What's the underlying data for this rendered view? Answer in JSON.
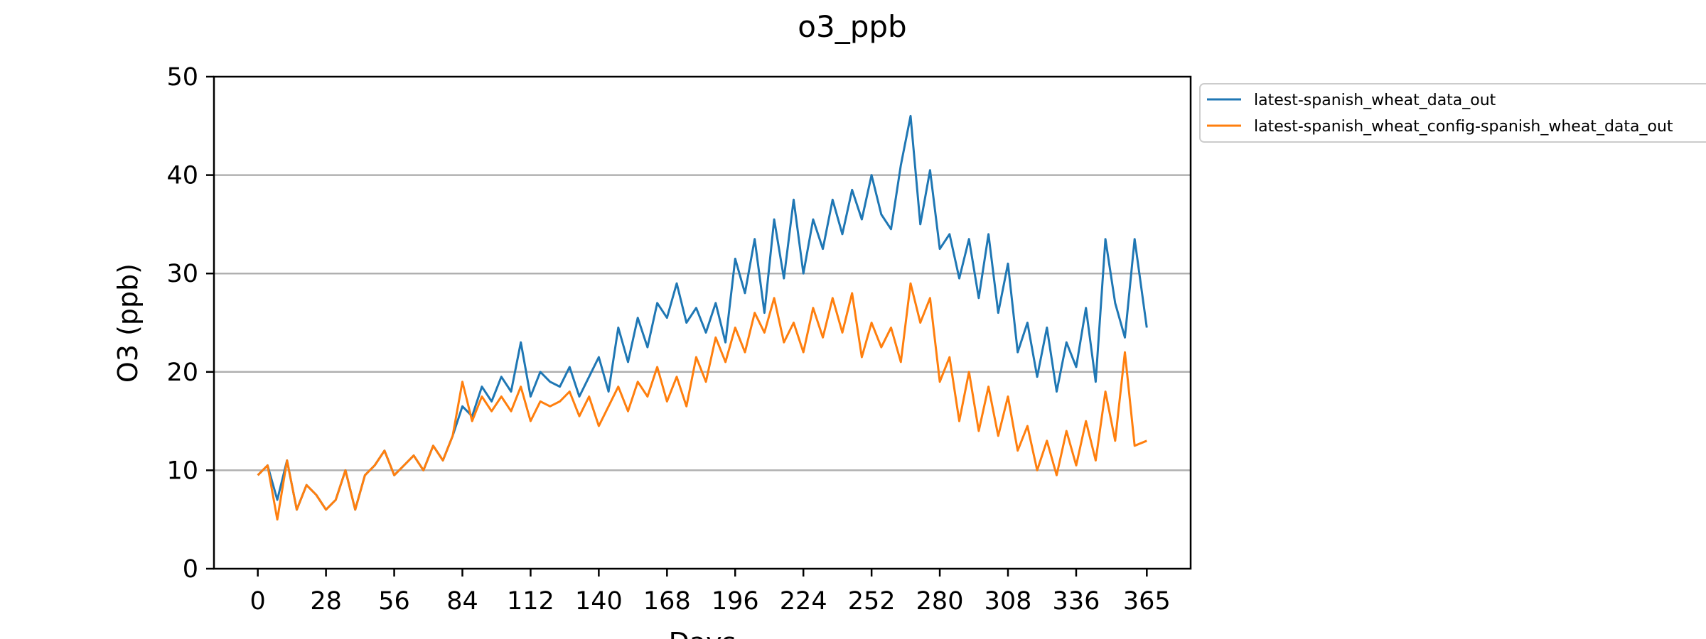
{
  "chart_data": {
    "type": "line",
    "title": "o3_ppb",
    "xlabel": "Days",
    "ylabel": "O3 (ppb)",
    "xlim": [
      -18,
      383
    ],
    "ylim": [
      0,
      50
    ],
    "xticks": [
      0,
      28,
      56,
      84,
      112,
      140,
      168,
      196,
      224,
      252,
      280,
      308,
      336,
      365
    ],
    "yticks": [
      0,
      10,
      20,
      30,
      40,
      50
    ],
    "grid": "horizontal",
    "legend_position": "outside-top-right",
    "series": [
      {
        "name": "latest-spanish_wheat_data_out",
        "color": "#1f77b4",
        "x": [
          0,
          4,
          8,
          12,
          16,
          20,
          24,
          28,
          32,
          36,
          40,
          44,
          48,
          52,
          56,
          60,
          64,
          68,
          72,
          76,
          80,
          84,
          88,
          92,
          96,
          100,
          104,
          108,
          112,
          116,
          120,
          124,
          128,
          132,
          136,
          140,
          144,
          148,
          152,
          156,
          160,
          164,
          168,
          172,
          176,
          180,
          184,
          188,
          192,
          196,
          200,
          204,
          208,
          212,
          216,
          220,
          224,
          228,
          232,
          236,
          240,
          244,
          248,
          252,
          256,
          260,
          264,
          268,
          272,
          276,
          280,
          284,
          288,
          292,
          296,
          300,
          304,
          308,
          312,
          316,
          320,
          324,
          328,
          332,
          336,
          340,
          344,
          348,
          352,
          356,
          360,
          365
        ],
        "values": [
          9.5,
          10.5,
          7.0,
          11.0,
          6.0,
          8.5,
          7.5,
          6.0,
          7.0,
          10.0,
          6.0,
          9.5,
          10.5,
          12.0,
          9.5,
          10.5,
          11.5,
          10.0,
          12.5,
          11.0,
          13.5,
          16.5,
          15.5,
          18.5,
          17.0,
          19.5,
          18.0,
          23.0,
          17.5,
          20.0,
          19.0,
          18.5,
          20.5,
          17.5,
          19.5,
          21.5,
          18.0,
          24.5,
          21.0,
          25.5,
          22.5,
          27.0,
          25.5,
          29.0,
          25.0,
          26.5,
          24.0,
          27.0,
          23.0,
          31.5,
          28.0,
          33.5,
          26.0,
          35.5,
          29.5,
          37.5,
          30.0,
          35.5,
          32.5,
          37.5,
          34.0,
          38.5,
          35.5,
          40.0,
          36.0,
          34.5,
          41.0,
          46.0,
          35.0,
          40.5,
          32.5,
          34.0,
          29.5,
          33.5,
          27.5,
          34.0,
          26.0,
          31.0,
          22.0,
          25.0,
          19.5,
          24.5,
          18.0,
          23.0,
          20.5,
          26.5,
          19.0,
          33.5,
          27.0,
          23.5,
          33.5,
          24.5
        ]
      },
      {
        "name": "latest-spanish_wheat_config-spanish_wheat_data_out",
        "color": "#ff7f0e",
        "x": [
          0,
          4,
          8,
          12,
          16,
          20,
          24,
          28,
          32,
          36,
          40,
          44,
          48,
          52,
          56,
          60,
          64,
          68,
          72,
          76,
          80,
          84,
          88,
          92,
          96,
          100,
          104,
          108,
          112,
          116,
          120,
          124,
          128,
          132,
          136,
          140,
          144,
          148,
          152,
          156,
          160,
          164,
          168,
          172,
          176,
          180,
          184,
          188,
          192,
          196,
          200,
          204,
          208,
          212,
          216,
          220,
          224,
          228,
          232,
          236,
          240,
          244,
          248,
          252,
          256,
          260,
          264,
          268,
          272,
          276,
          280,
          284,
          288,
          292,
          296,
          300,
          304,
          308,
          312,
          316,
          320,
          324,
          328,
          332,
          336,
          340,
          344,
          348,
          352,
          356,
          360,
          365
        ],
        "values": [
          9.5,
          10.5,
          5.0,
          11.0,
          6.0,
          8.5,
          7.5,
          6.0,
          7.0,
          10.0,
          6.0,
          9.5,
          10.5,
          12.0,
          9.5,
          10.5,
          11.5,
          10.0,
          12.5,
          11.0,
          13.5,
          19.0,
          15.0,
          17.5,
          16.0,
          17.5,
          16.0,
          18.5,
          15.0,
          17.0,
          16.5,
          17.0,
          18.0,
          15.5,
          17.5,
          14.5,
          16.5,
          18.5,
          16.0,
          19.0,
          17.5,
          20.5,
          17.0,
          19.5,
          16.5,
          21.5,
          19.0,
          23.5,
          21.0,
          24.5,
          22.0,
          26.0,
          24.0,
          27.5,
          23.0,
          25.0,
          22.0,
          26.5,
          23.5,
          27.5,
          24.0,
          28.0,
          21.5,
          25.0,
          22.5,
          24.5,
          21.0,
          29.0,
          25.0,
          27.5,
          19.0,
          21.5,
          15.0,
          20.0,
          14.0,
          18.5,
          13.5,
          17.5,
          12.0,
          14.5,
          10.0,
          13.0,
          9.5,
          14.0,
          10.5,
          15.0,
          11.0,
          18.0,
          13.0,
          22.0,
          12.5,
          13.0
        ]
      }
    ]
  }
}
